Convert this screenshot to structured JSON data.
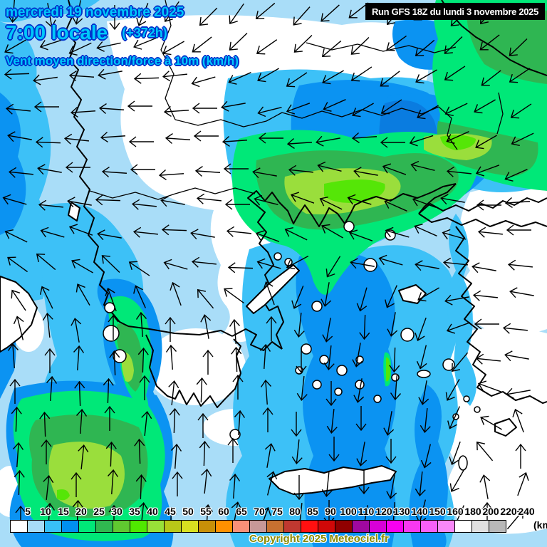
{
  "header": {
    "date_line": "mercredi 19 novembre 2025",
    "time_line": "7:00 locale",
    "offset_label": "(+372h)",
    "variable_label": "Vent moyen direction/force à 10m (km/h)",
    "title_color": "#00c8fa",
    "title_outline_color": "#0033cc"
  },
  "run_info": {
    "label": "Run GFS 18Z du lundi 3 novembre 2025",
    "bg": "#000000",
    "fg": "#ffffff"
  },
  "legend": {
    "unit_label": "(km/h)",
    "values": [
      5,
      10,
      15,
      20,
      25,
      30,
      35,
      40,
      45,
      50,
      55,
      60,
      65,
      70,
      75,
      80,
      85,
      90,
      100,
      110,
      120,
      130,
      140,
      150,
      160,
      180,
      200,
      220,
      240
    ],
    "colors": [
      "#ffffff",
      "#a8dcf8",
      "#38c0f8",
      "#0090f0",
      "#00e878",
      "#30b850",
      "#60c830",
      "#50e800",
      "#98e038",
      "#b8c818",
      "#d8e020",
      "#c89008",
      "#ff9000",
      "#f89078",
      "#c89898",
      "#c87030",
      "#c03830",
      "#ff1010",
      "#d00808",
      "#900000",
      "#a008a0",
      "#d800d8",
      "#f800f0",
      "#f838f0",
      "#f860f8",
      "#f888f8",
      "#ffffff",
      "#e0e0e0",
      "#b8b8b8"
    ]
  },
  "footer": {
    "copyright": "Copyright 2025 Meteociel.fr",
    "color": "#8a8a00"
  },
  "map_colors": {
    "sea_light": "#a9ddf8",
    "sea_medium": "#3dc1f7",
    "sea_strong": "#0b93f2",
    "sea_dark": "#0a7ce0",
    "wind_25_plus": "#00e878",
    "wind_30_plus": "#2fb652",
    "wind_40_plus": "#55e607",
    "wind_45_plus": "#9ade3c"
  },
  "wind": {
    "grid_origin": [
      24,
      20
    ],
    "grid_step": 44,
    "arrow_color": "#000000",
    "angles_deg_clockwise_from_east": [
      [
        95,
        80,
        100,
        90,
        112,
        125,
        135,
        125,
        140,
        132,
        138,
        142,
        130,
        142,
        136,
        130,
        140
      ],
      [
        150,
        162,
        155,
        168,
        158,
        150,
        142,
        136,
        145,
        136,
        140,
        136,
        144,
        140,
        136,
        142,
        136
      ],
      [
        178,
        172,
        184,
        170,
        178,
        174,
        164,
        156,
        150,
        146,
        150,
        146,
        142,
        150,
        146,
        142,
        146
      ],
      [
        186,
        180,
        176,
        184,
        180,
        176,
        180,
        170,
        166,
        160,
        156,
        150,
        146,
        150,
        154,
        150,
        146
      ],
      [
        190,
        182,
        186,
        176,
        180,
        184,
        180,
        176,
        180,
        176,
        170,
        176,
        180,
        162,
        156,
        150,
        154
      ],
      [
        186,
        190,
        180,
        184,
        180,
        176,
        184,
        180,
        190,
        186,
        194,
        190,
        200,
        194,
        186,
        160,
        156
      ],
      [
        196,
        186,
        190,
        182,
        186,
        190,
        186,
        180,
        194,
        200,
        206,
        196,
        204,
        200,
        190,
        180,
        176
      ],
      [
        206,
        196,
        200,
        190,
        186,
        182,
        190,
        186,
        200,
        206,
        210,
        200,
        196,
        204,
        196,
        186,
        180
      ],
      [
        216,
        220,
        210,
        224,
        214,
        196,
        186,
        182,
        196,
        152,
        122,
        190,
        196,
        190,
        186,
        190,
        186
      ],
      [
        236,
        244,
        240,
        250,
        246,
        250,
        230,
        216,
        250,
        112,
        100,
        106,
        114,
        150,
        170,
        186,
        190
      ],
      [
        256,
        264,
        260,
        270,
        266,
        270,
        260,
        266,
        270,
        96,
        100,
        92,
        100,
        110,
        160,
        180,
        186
      ],
      [
        266,
        270,
        274,
        268,
        272,
        266,
        270,
        268,
        274,
        90,
        96,
        100,
        92,
        104,
        130,
        186,
        190
      ],
      [
        270,
        274,
        268,
        272,
        270,
        276,
        272,
        270,
        266,
        96,
        90,
        100,
        94,
        100,
        120,
        200,
        170
      ],
      [
        272,
        268,
        274,
        270,
        276,
        272,
        270,
        274,
        270,
        90,
        96,
        90,
        100,
        96,
        114,
        210,
        250
      ],
      [
        274,
        270,
        276,
        272,
        268,
        274,
        272,
        270,
        280,
        96,
        90,
        100,
        90,
        104,
        110,
        230,
        270
      ],
      [
        272,
        276,
        270,
        274,
        272,
        270,
        276,
        274,
        284,
        90,
        96,
        90,
        100,
        96,
        120,
        260,
        290
      ],
      [
        270,
        274,
        272,
        270,
        276,
        272,
        274,
        280,
        290,
        96,
        90,
        100,
        94,
        104,
        114,
        270,
        310
      ]
    ]
  }
}
